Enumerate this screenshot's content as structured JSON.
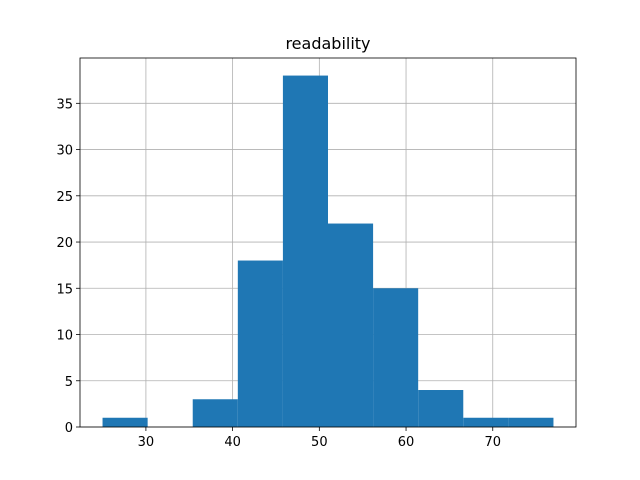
{
  "chart_data": {
    "type": "histogram",
    "title": "readability",
    "bins": [
      25,
      30.2,
      35.4,
      40.6,
      45.8,
      51,
      56.2,
      61.4,
      66.6,
      71.8,
      77
    ],
    "counts": [
      1,
      0,
      3,
      18,
      38,
      22,
      15,
      4,
      1,
      1
    ],
    "color": "#1f77b4",
    "xlim": [
      22.4,
      79.6
    ],
    "xticks": [
      30,
      40,
      50,
      60,
      70
    ],
    "ylim": [
      0,
      39.9
    ],
    "yticks": [
      0,
      5,
      10,
      15,
      20,
      25,
      30,
      35
    ],
    "grid": true
  }
}
